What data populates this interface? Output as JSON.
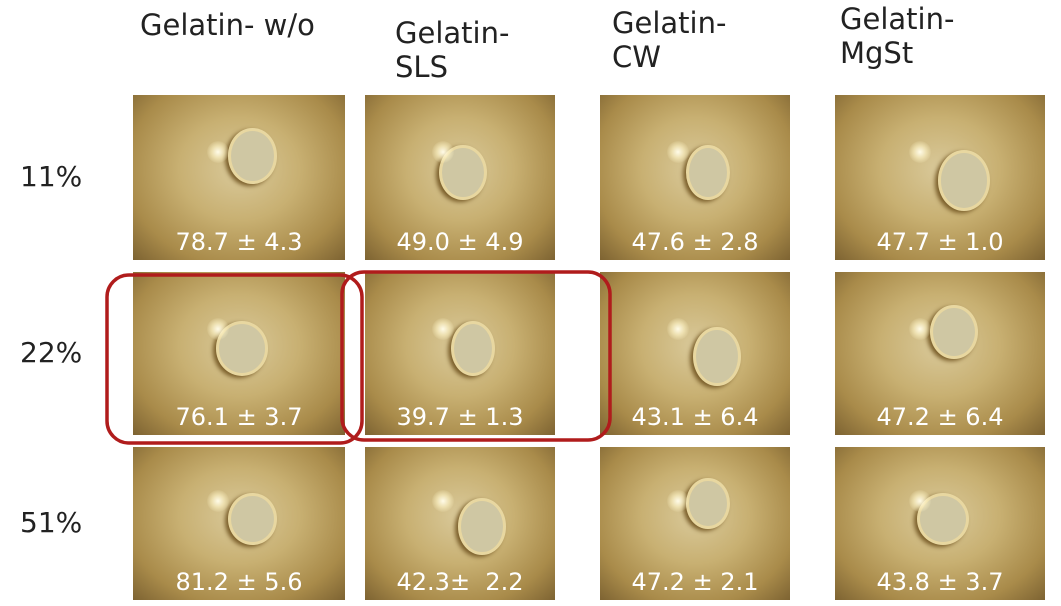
{
  "columns": [
    "Gelatin- w/o",
    "Gelatin-SLS",
    "Gelatin-CW",
    "Gelatin-MgSt"
  ],
  "rows": [
    {
      "label": "11%",
      "cells": [
        "78.7 ± 4.3",
        "49.0 ± 4.9",
        "47.6 ± 2.8",
        "47.7 ± 1.0"
      ]
    },
    {
      "label": "22%",
      "cells": [
        "76.1 ± 3.7",
        "39.7 ± 1.3",
        "43.1 ± 6.4",
        "47.2 ± 6.4"
      ]
    },
    {
      "label": "51%",
      "cells": [
        "81.2 ± 5.6",
        "42.3±  2.2",
        "47.2 ± 2.1",
        "43.8 ± 3.7"
      ]
    }
  ]
}
